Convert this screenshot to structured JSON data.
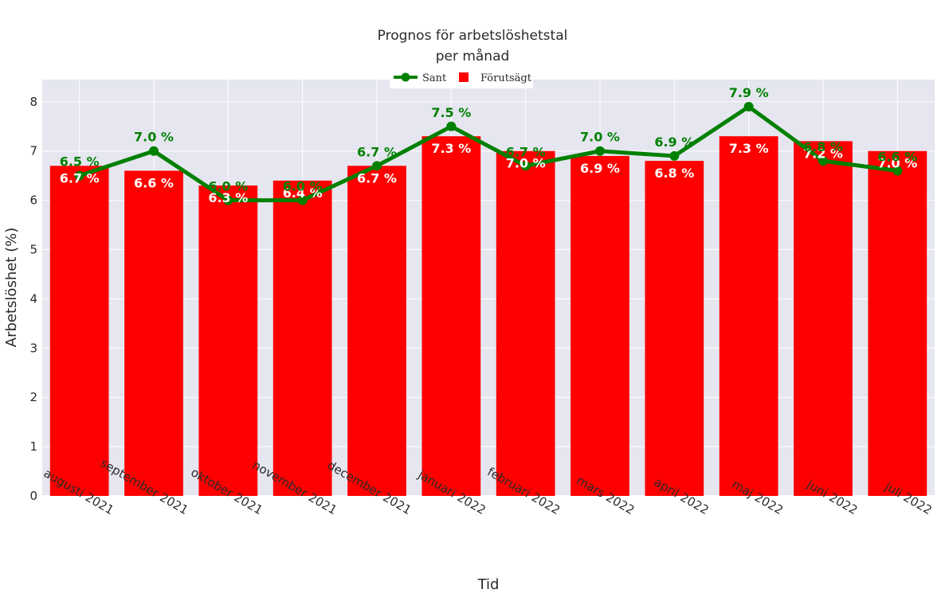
{
  "chart_data": {
    "type": "bar",
    "title_line1": "Prognos för arbetslöshetstal",
    "title_line2": "per månad",
    "xlabel": "Tid",
    "ylabel": "Arbetslöshet (%)",
    "ylim": [
      0,
      8.45
    ],
    "yticks": [
      0,
      1,
      2,
      3,
      4,
      5,
      6,
      7,
      8
    ],
    "grid": true,
    "legend_position": "top-center",
    "categories": [
      "augusti 2021",
      "september 2021",
      "oktober 2021",
      "november 2021",
      "december 2021",
      "januari 2022",
      "februari 2022",
      "mars 2022",
      "april 2022",
      "maj 2022",
      "juni 2022",
      "juli 2022"
    ],
    "series": [
      {
        "name": "Sant",
        "kind": "line",
        "color": "#008000",
        "values": [
          6.5,
          7.0,
          6.0,
          6.0,
          6.7,
          7.5,
          6.7,
          7.0,
          6.9,
          7.9,
          6.8,
          6.6
        ],
        "labels": [
          "6.5 %",
          "7.0 %",
          "6.0 %",
          "6.0 %",
          "6.7 %",
          "7.5 %",
          "6.7 %",
          "7.0 %",
          "6.9 %",
          "7.9 %",
          "6.8 %",
          "6.6 %"
        ]
      },
      {
        "name": "Förutsägt",
        "kind": "bar",
        "color": "#ff0000",
        "values": [
          6.7,
          6.6,
          6.3,
          6.4,
          6.7,
          7.3,
          7.0,
          6.9,
          6.8,
          7.3,
          7.2,
          7.0
        ],
        "labels": [
          "6.7 %",
          "6.6 %",
          "6.3 %",
          "6.4 %",
          "6.7 %",
          "7.3 %",
          "7.0 %",
          "6.9 %",
          "6.8 %",
          "7.3 %",
          "7.2 %",
          "7.0 %"
        ]
      }
    ]
  },
  "colors": {
    "plot_background": "#e5e6ef",
    "grid": "#ffffff",
    "bar": "#ff0000",
    "line": "#008000"
  }
}
